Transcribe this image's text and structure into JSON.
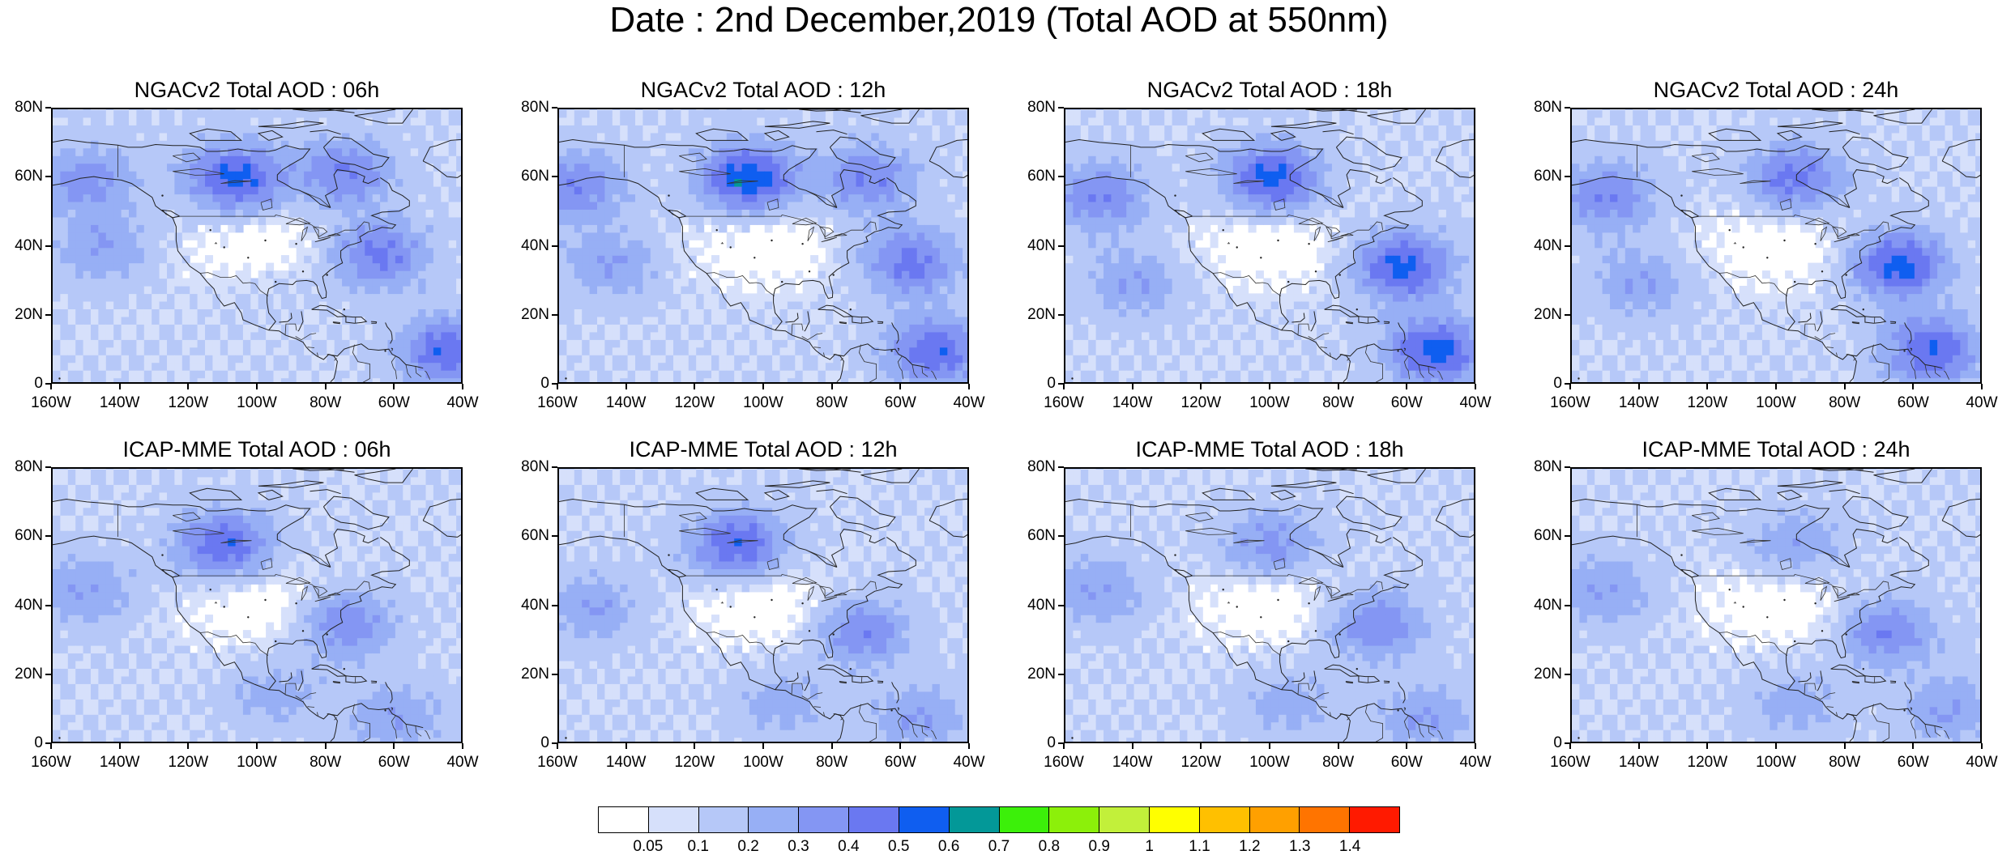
{
  "main_title": "Date : 2nd December,2019 (Total AOD at 550nm)",
  "panels": [
    {
      "title": "NGACv2 Total AOD : 06h",
      "model": "NGACv2",
      "hour": "06h"
    },
    {
      "title": "NGACv2 Total AOD : 12h",
      "model": "NGACv2",
      "hour": "12h"
    },
    {
      "title": "NGACv2 Total AOD : 18h",
      "model": "NGACv2",
      "hour": "18h"
    },
    {
      "title": "NGACv2 Total AOD : 24h",
      "model": "NGACv2",
      "hour": "24h"
    },
    {
      "title": "ICAP-MME Total AOD : 06h",
      "model": "ICAP-MME",
      "hour": "06h"
    },
    {
      "title": "ICAP-MME Total AOD : 12h",
      "model": "ICAP-MME",
      "hour": "12h"
    },
    {
      "title": "ICAP-MME Total AOD : 18h",
      "model": "ICAP-MME",
      "hour": "18h"
    },
    {
      "title": "ICAP-MME Total AOD : 24h",
      "model": "ICAP-MME",
      "hour": "24h"
    }
  ],
  "lon_ticks": [
    "160W",
    "140W",
    "120W",
    "100W",
    "80W",
    "60W",
    "40W"
  ],
  "lat_ticks": [
    "80N",
    "60N",
    "40N",
    "20N",
    "0"
  ],
  "map_extent": {
    "lon": [
      -160,
      -40
    ],
    "lat": [
      0,
      80
    ]
  },
  "colorbar": {
    "labels": [
      "0.05",
      "0.1",
      "0.2",
      "0.3",
      "0.4",
      "0.5",
      "0.6",
      "0.7",
      "0.8",
      "0.9",
      "1",
      "1.1",
      "1.2",
      "1.3",
      "1.4"
    ],
    "colors": [
      "#ffffff",
      "#d6e0fb",
      "#b6c8f8",
      "#97aff5",
      "#8496f3",
      "#6a78f1",
      "#0f5ef0",
      "#039898",
      "#3cf00a",
      "#8cf00a",
      "#c2f03a",
      "#ffff00",
      "#ffc000",
      "#ffa000",
      "#ff7400",
      "#ff1a00"
    ]
  },
  "aod_fields": {
    "NGACv2-06h": [
      {
        "lon": -150,
        "lat": 60,
        "aod": 0.25
      },
      {
        "lon": -145,
        "lat": 40,
        "aod": 0.2
      },
      {
        "lon": -107,
        "lat": 60,
        "aod": 0.45
      },
      {
        "lon": -75,
        "lat": 62,
        "aod": 0.3
      },
      {
        "lon": -65,
        "lat": 38,
        "aod": 0.35
      },
      {
        "lon": -45,
        "lat": 10,
        "aod": 0.4
      },
      {
        "lon": -95,
        "lat": 30,
        "aod": 0.05
      }
    ],
    "NGACv2-12h": [
      {
        "lon": -155,
        "lat": 58,
        "aod": 0.3
      },
      {
        "lon": -105,
        "lat": 60,
        "aod": 0.5
      },
      {
        "lon": -70,
        "lat": 60,
        "aod": 0.3
      },
      {
        "lon": -58,
        "lat": 36,
        "aod": 0.35
      },
      {
        "lon": -50,
        "lat": 10,
        "aod": 0.4
      },
      {
        "lon": -145,
        "lat": 35,
        "aod": 0.2
      }
    ],
    "NGACv2-18h": [
      {
        "lon": -150,
        "lat": 55,
        "aod": 0.3
      },
      {
        "lon": -100,
        "lat": 60,
        "aod": 0.45
      },
      {
        "lon": -62,
        "lat": 35,
        "aod": 0.45
      },
      {
        "lon": -52,
        "lat": 10,
        "aod": 0.45
      },
      {
        "lon": -140,
        "lat": 30,
        "aod": 0.2
      }
    ],
    "NGACv2-24h": [
      {
        "lon": -150,
        "lat": 55,
        "aod": 0.3
      },
      {
        "lon": -95,
        "lat": 60,
        "aod": 0.35
      },
      {
        "lon": -65,
        "lat": 35,
        "aod": 0.45
      },
      {
        "lon": -55,
        "lat": 10,
        "aod": 0.4
      },
      {
        "lon": -140,
        "lat": 30,
        "aod": 0.2
      }
    ],
    "ICAP-MME-06h": [
      {
        "lon": -150,
        "lat": 45,
        "aod": 0.2
      },
      {
        "lon": -110,
        "lat": 58,
        "aod": 0.4
      },
      {
        "lon": -75,
        "lat": 35,
        "aod": 0.3
      },
      {
        "lon": -60,
        "lat": 8,
        "aod": 0.2
      },
      {
        "lon": -95,
        "lat": 15,
        "aod": 0.15
      }
    ],
    "ICAP-MME-12h": [
      {
        "lon": -150,
        "lat": 40,
        "aod": 0.2
      },
      {
        "lon": -108,
        "lat": 58,
        "aod": 0.4
      },
      {
        "lon": -72,
        "lat": 33,
        "aod": 0.3
      },
      {
        "lon": -55,
        "lat": 8,
        "aod": 0.2
      },
      {
        "lon": -95,
        "lat": 12,
        "aod": 0.15
      }
    ],
    "ICAP-MME-18h": [
      {
        "lon": -150,
        "lat": 45,
        "aod": 0.2
      },
      {
        "lon": -100,
        "lat": 58,
        "aod": 0.25
      },
      {
        "lon": -70,
        "lat": 35,
        "aod": 0.3
      },
      {
        "lon": -55,
        "lat": 8,
        "aod": 0.2
      },
      {
        "lon": -95,
        "lat": 12,
        "aod": 0.15
      }
    ],
    "ICAP-MME-24h": [
      {
        "lon": -150,
        "lat": 45,
        "aod": 0.2
      },
      {
        "lon": -95,
        "lat": 58,
        "aod": 0.2
      },
      {
        "lon": -68,
        "lat": 33,
        "aod": 0.3
      },
      {
        "lon": -50,
        "lat": 10,
        "aod": 0.2
      },
      {
        "lon": -95,
        "lat": 12,
        "aod": 0.15
      }
    ]
  }
}
